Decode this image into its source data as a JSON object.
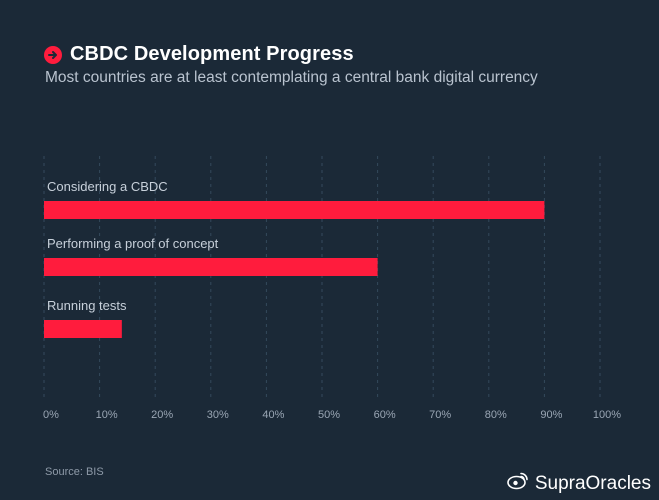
{
  "header": {
    "title": "CBDC Development Progress",
    "subtitle": "Most countries are at least contemplating a central bank digital currency"
  },
  "footer": {
    "source": "Source: BIS",
    "watermark": "SupraOracles"
  },
  "colors": {
    "background": "#1b2937",
    "bar": "#ff1c3d",
    "grid": "#34495c",
    "text": "#c7d0da"
  },
  "icons": {
    "title": "arrow-right-circle-icon",
    "watermark": "weibo-icon"
  },
  "chart_data": {
    "type": "bar",
    "orientation": "horizontal",
    "categories": [
      "Considering a CBDC",
      "Performing a proof of concept",
      "Running tests"
    ],
    "values": [
      90,
      60,
      14
    ],
    "xlim": [
      0,
      100
    ],
    "xticks": [
      "0%",
      "10%",
      "20%",
      "30%",
      "40%",
      "50%",
      "60%",
      "70%",
      "80%",
      "90%",
      "100%"
    ],
    "grid": "vertical dashed",
    "legend": "none"
  }
}
